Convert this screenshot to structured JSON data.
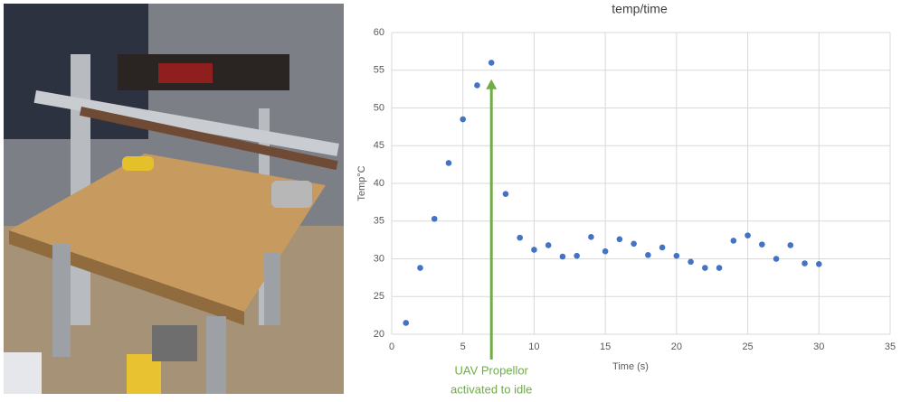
{
  "chart_data": {
    "type": "scatter",
    "title": "temp/time",
    "x_label": "Time (s)",
    "y_label": "Temp°C",
    "x": [
      1,
      2,
      3,
      4,
      5,
      6,
      7,
      8,
      9,
      10,
      11,
      12,
      13,
      14,
      15,
      16,
      17,
      18,
      19,
      20,
      21,
      22,
      23,
      24,
      25,
      26,
      27,
      28,
      29,
      30
    ],
    "series": [
      {
        "color": "#4472c4",
        "values": [
          21.5,
          28.8,
          35.3,
          42.7,
          48.5,
          53,
          56,
          38.6,
          32.8,
          31.2,
          31.8,
          30.3,
          30.4,
          32.9,
          31,
          32.6,
          32,
          30.5,
          31.5,
          30.4,
          29.6,
          28.8,
          28.8,
          32.4,
          33.1,
          31.9,
          30,
          31.8,
          29.4,
          29.3
        ]
      }
    ],
    "xlim": [
      0,
      35
    ],
    "xticks": [
      0,
      5,
      10,
      15,
      20,
      25,
      30,
      35
    ],
    "ylim": [
      20,
      60
    ],
    "yticks": [
      20,
      25,
      30,
      35,
      40,
      45,
      50,
      55,
      60
    ],
    "grid": true,
    "annotation": {
      "lines": [
        "UAV Propellor",
        "activated to idle"
      ],
      "x": 7,
      "y": 53.8,
      "color": "#70ad47"
    }
  }
}
